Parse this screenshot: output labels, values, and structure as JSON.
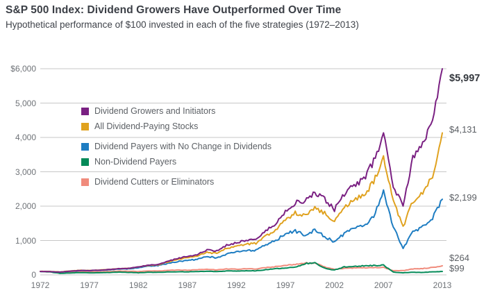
{
  "chart_data": {
    "type": "line",
    "title": "S&P 500 Index: Dividend Growers Have Outperformed Over Time",
    "subtitle": "Hypothetical performance of $100 invested in each of the five strategies (1972–2013)",
    "x_range": [
      1972,
      2013
    ],
    "ylim": [
      0,
      6000
    ],
    "grid": "horizontal",
    "legend_position": "upper-left-inside",
    "x_ticks": [
      {
        "label": "1972",
        "value": 1972
      },
      {
        "label": "1977",
        "value": 1977
      },
      {
        "label": "1982",
        "value": 1982
      },
      {
        "label": "1987",
        "value": 1987
      },
      {
        "label": "1992",
        "value": 1992
      },
      {
        "label": "1997",
        "value": 1997
      },
      {
        "label": "2002",
        "value": 2002
      },
      {
        "label": "2007",
        "value": 2007
      },
      {
        "label": "2013",
        "value": 2013
      }
    ],
    "y_ticks": [
      {
        "label": "$6,000",
        "value": 6000
      },
      {
        "label": "5,000",
        "value": 5000
      },
      {
        "label": "4,000",
        "value": 4000
      },
      {
        "label": "3,000",
        "value": 3000
      },
      {
        "label": "2,000",
        "value": 2000
      },
      {
        "label": "1,000",
        "value": 1000
      },
      {
        "label": "0",
        "value": 0
      }
    ],
    "years": [
      1972,
      1973,
      1974,
      1975,
      1976,
      1977,
      1978,
      1979,
      1980,
      1981,
      1982,
      1983,
      1984,
      1985,
      1986,
      1987,
      1988,
      1989,
      1990,
      1991,
      1992,
      1993,
      1994,
      1995,
      1996,
      1997,
      1998,
      1999,
      2000,
      2001,
      2002,
      2003,
      2004,
      2005,
      2006,
      2007,
      2008,
      2009,
      2010,
      2011,
      2012,
      2013
    ],
    "series": [
      {
        "name": "Dividend Growers and Initiators",
        "color": "#7a2082",
        "end_label": "$5,997",
        "end_value": 5997,
        "values": [
          100,
          95,
          80,
          107,
          128,
          126,
          135,
          155,
          180,
          188,
          230,
          280,
          300,
          390,
          480,
          540,
          590,
          720,
          690,
          860,
          940,
          1010,
          1040,
          1280,
          1480,
          1850,
          2100,
          2150,
          2370,
          2200,
          1900,
          2350,
          2600,
          2800,
          3300,
          4100,
          2600,
          2000,
          3400,
          3800,
          4600,
          5997
        ]
      },
      {
        "name": "All Dividend-Paying Stocks",
        "color": "#e0a21f",
        "end_label": "$4,131",
        "end_value": 4131,
        "values": [
          100,
          97,
          83,
          110,
          132,
          129,
          137,
          157,
          180,
          186,
          228,
          275,
          292,
          372,
          450,
          500,
          545,
          655,
          620,
          770,
          835,
          900,
          915,
          1120,
          1290,
          1600,
          1800,
          1750,
          1950,
          1800,
          1550,
          1950,
          2180,
          2320,
          2700,
          3400,
          2150,
          1400,
          2150,
          2400,
          2900,
          4131
        ]
      },
      {
        "name": "Dividend Payers with No Change in Dividends",
        "color": "#1e7dc2",
        "end_label": "$2,199",
        "end_value": 2199,
        "values": [
          100,
          96,
          78,
          104,
          124,
          120,
          128,
          146,
          168,
          172,
          210,
          255,
          268,
          330,
          390,
          420,
          450,
          540,
          490,
          610,
          660,
          720,
          710,
          880,
          1000,
          1200,
          1280,
          1150,
          1300,
          1120,
          950,
          1200,
          1350,
          1420,
          1700,
          2400,
          1400,
          780,
          1250,
          1400,
          1650,
          2199
        ]
      },
      {
        "name": "Non-Dividend Payers",
        "color": "#048a58",
        "end_label": "$99",
        "end_value": 99,
        "values": [
          100,
          85,
          45,
          55,
          65,
          60,
          62,
          68,
          80,
          72,
          60,
          75,
          72,
          85,
          90,
          88,
          95,
          105,
          95,
          115,
          110,
          120,
          118,
          150,
          180,
          200,
          220,
          330,
          350,
          190,
          140,
          230,
          250,
          260,
          270,
          285,
          80,
          60,
          75,
          70,
          85,
          99
        ]
      },
      {
        "name": "Dividend Cutters or Eliminators",
        "color": "#f08b7c",
        "end_label": "$264",
        "end_value": 264,
        "values": [
          100,
          90,
          55,
          70,
          85,
          80,
          85,
          95,
          110,
          105,
          95,
          115,
          110,
          130,
          140,
          135,
          150,
          165,
          145,
          170,
          165,
          175,
          172,
          210,
          240,
          280,
          300,
          340,
          350,
          230,
          160,
          190,
          200,
          205,
          210,
          215,
          120,
          125,
          170,
          185,
          215,
          264
        ]
      }
    ]
  }
}
